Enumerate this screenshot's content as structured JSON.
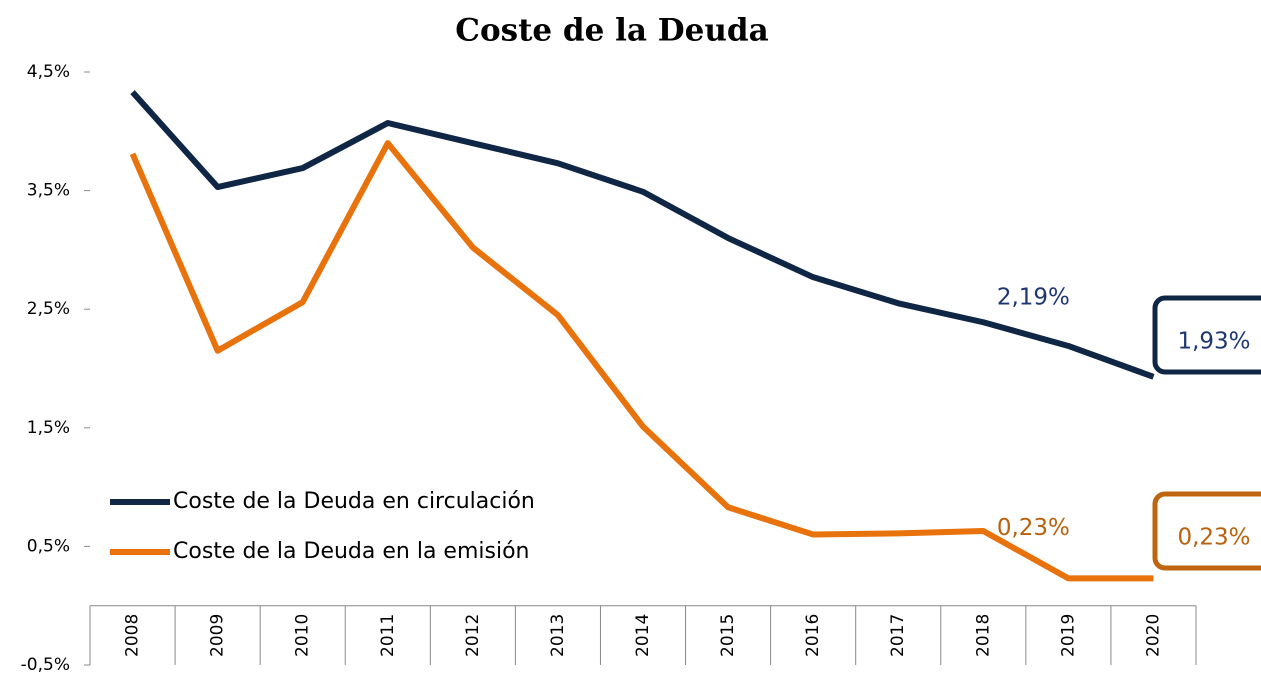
{
  "chart_data": {
    "type": "line",
    "title": "Coste de la Deuda",
    "categories": [
      "2008",
      "2009",
      "2010",
      "2011",
      "2012",
      "2013",
      "2014",
      "2015",
      "2016",
      "2017",
      "2018",
      "2019",
      "2020"
    ],
    "series": [
      {
        "name": "Coste de la Deuda en circulación",
        "color": "#0f2645",
        "values": [
          4.33,
          3.53,
          3.69,
          4.07,
          3.9,
          3.73,
          3.49,
          3.1,
          2.77,
          2.55,
          2.39,
          2.19,
          1.93
        ],
        "value_labels": [
          null,
          null,
          null,
          null,
          null,
          null,
          null,
          null,
          null,
          null,
          null,
          "2,19%",
          "1,93%"
        ]
      },
      {
        "name": "Coste de la Deuda en la emisión",
        "color": "#e8720c",
        "values": [
          3.81,
          2.15,
          2.56,
          3.9,
          3.02,
          2.45,
          1.51,
          0.83,
          0.6,
          0.61,
          0.63,
          0.23,
          0.23
        ],
        "value_labels": [
          null,
          null,
          null,
          null,
          null,
          null,
          null,
          null,
          null,
          null,
          null,
          "0,23%",
          "0,23%"
        ]
      }
    ],
    "ylim": [
      -0.5,
      4.5
    ],
    "yticks": [
      {
        "value": -0.5,
        "label": "-0,5%"
      },
      {
        "value": 0.5,
        "label": "0,5%"
      },
      {
        "value": 1.5,
        "label": "1,5%"
      },
      {
        "value": 2.5,
        "label": "2,5%"
      },
      {
        "value": 3.5,
        "label": "3,5%"
      },
      {
        "value": 4.5,
        "label": "4,5%"
      }
    ],
    "grid": false,
    "legend": "lower left"
  }
}
